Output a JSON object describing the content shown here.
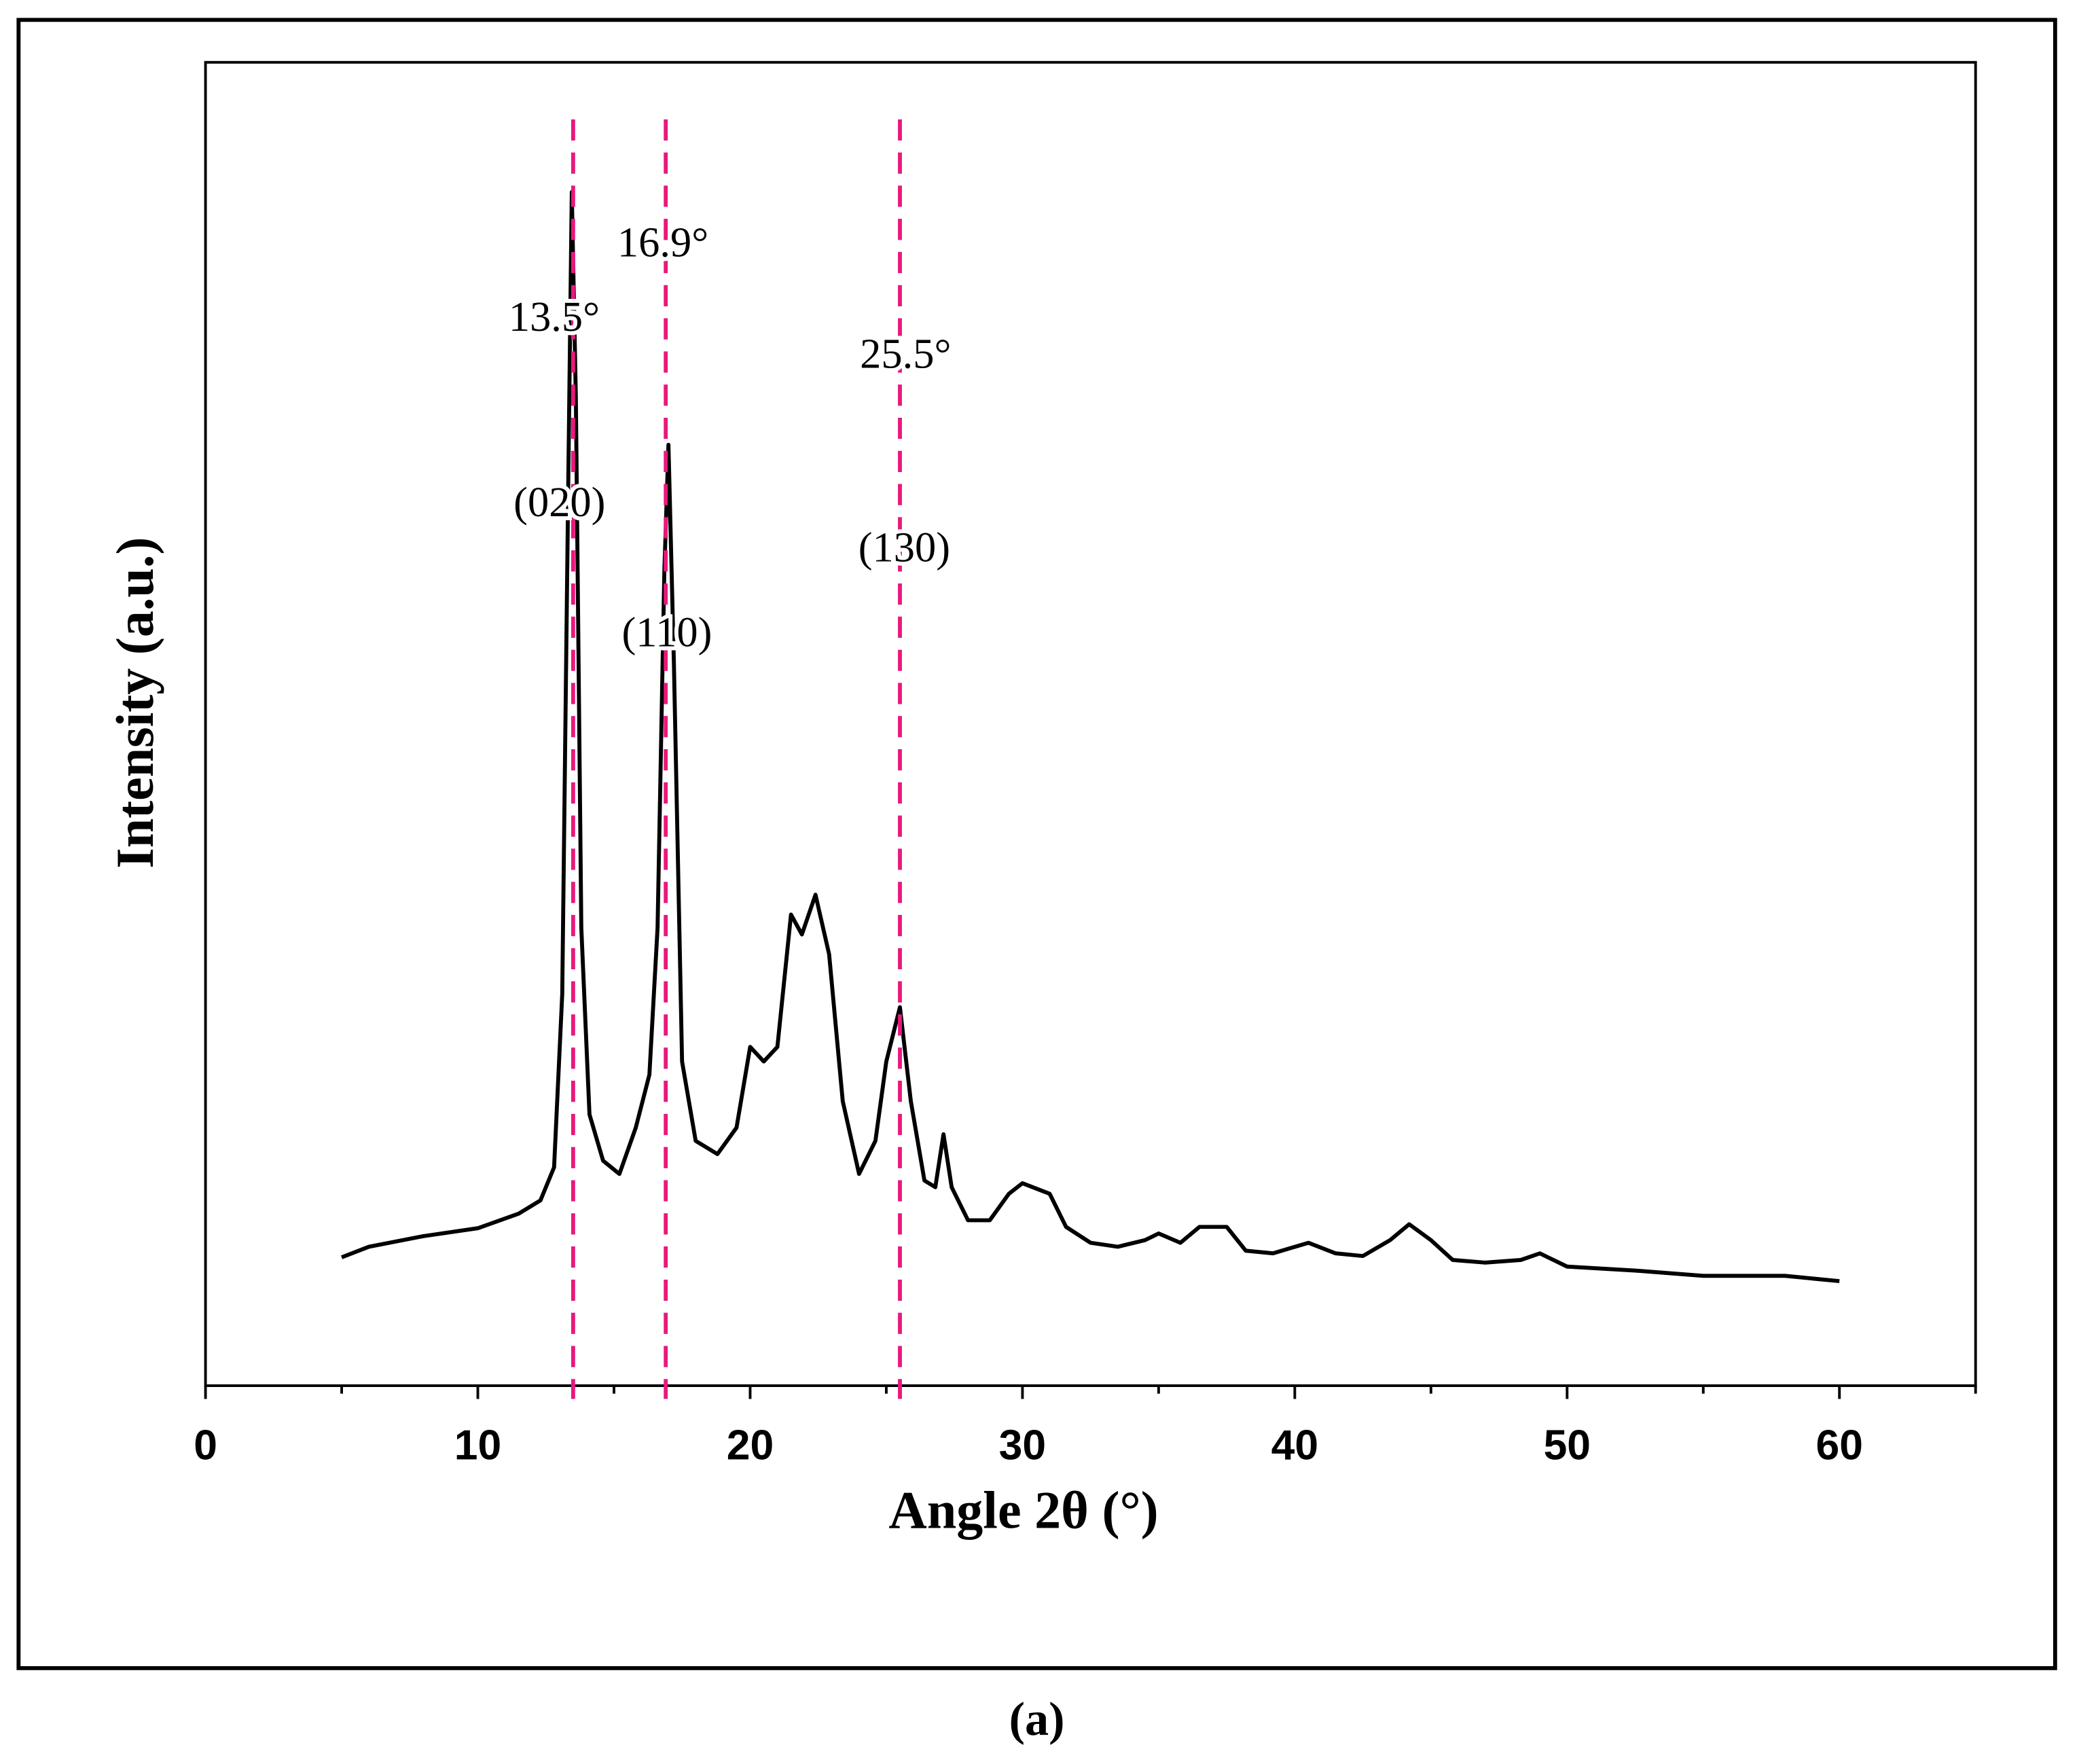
{
  "chart_data": {
    "type": "line",
    "x_label": "Angle 2θ (°)",
    "y_label": "Intensity (a.u.)",
    "caption": "(a)",
    "color": "#000000",
    "xlim": [
      0,
      65
    ],
    "ylim": [
      0,
      100
    ],
    "xticks": [
      0,
      10,
      20,
      30,
      40,
      50,
      60
    ],
    "xminorticks": [
      5,
      15,
      25,
      35,
      45,
      55,
      65
    ],
    "x": [
      5,
      6,
      8,
      10,
      11.5,
      12.3,
      12.8,
      13.1,
      13.3,
      13.45,
      13.6,
      13.8,
      14.1,
      14.6,
      15.2,
      15.8,
      16.3,
      16.6,
      16.85,
      17.0,
      17.2,
      17.5,
      18,
      18.8,
      19.5,
      20.0,
      20.5,
      21.0,
      21.5,
      21.9,
      22.4,
      22.9,
      23.4,
      24.0,
      24.6,
      25.0,
      25.5,
      25.9,
      26.4,
      26.8,
      27.1,
      27.4,
      28,
      28.8,
      29.5,
      30,
      31,
      31.6,
      32.5,
      33.5,
      34.5,
      35,
      35.8,
      36.5,
      37.5,
      38.2,
      39.2,
      40.5,
      41.5,
      42.5,
      43.5,
      44.2,
      45,
      45.8,
      47,
      48.3,
      49,
      50,
      52.5,
      55,
      58,
      60
    ],
    "values": [
      9.7,
      10.5,
      11.3,
      11.9,
      13.0,
      14.0,
      16.5,
      29.6,
      64.6,
      90.2,
      74.6,
      34.6,
      20.5,
      17.0,
      16.0,
      19.5,
      23.5,
      34.6,
      61.6,
      71.1,
      54.6,
      24.5,
      18.5,
      17.5,
      19.5,
      25.6,
      24.5,
      25.6,
      35.6,
      34.1,
      37.1,
      32.6,
      21.5,
      16.0,
      18.5,
      24.5,
      28.6,
      21.5,
      15.5,
      15.0,
      19.0,
      15.0,
      12.5,
      12.5,
      14.5,
      15.3,
      14.5,
      12.0,
      10.8,
      10.5,
      11.0,
      11.5,
      10.8,
      12.0,
      12.0,
      10.2,
      10.0,
      10.8,
      10.0,
      9.8,
      11.0,
      12.2,
      11.0,
      9.5,
      9.3,
      9.5,
      10.0,
      9.0,
      8.7,
      8.3,
      8.3,
      7.9
    ],
    "reference_lines": {
      "color": "#e8197d",
      "items": [
        {
          "x": 13.5,
          "label": "13.5°",
          "plane": "(020)"
        },
        {
          "x": 16.9,
          "label": "16.9°",
          "plane": "(110)"
        },
        {
          "x": 25.5,
          "label": "25.5°",
          "plane": "(130)"
        }
      ]
    }
  }
}
